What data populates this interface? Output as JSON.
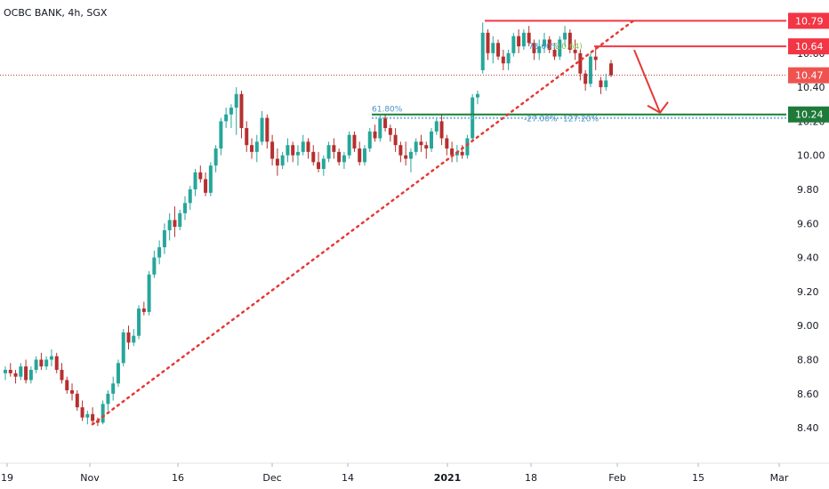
{
  "chart_data": {
    "type": "candlestick",
    "title": "OCBC BANK, 4h, SGX",
    "x_ticks": [
      "19",
      "Nov",
      "16",
      "Dec",
      "14",
      "2021",
      "18",
      "Feb",
      "15",
      "Mar"
    ],
    "y_ticks": [
      "8.40",
      "8.60",
      "8.80",
      "9.00",
      "9.20",
      "9.40",
      "9.60",
      "9.80",
      "10.00",
      "10.20",
      "10.40",
      "10.60"
    ],
    "ylim": [
      8.27,
      10.86
    ],
    "grid": false,
    "price_tags": [
      {
        "label": "10.79",
        "value": 10.79,
        "color": "#f23645"
      },
      {
        "label": "10.64",
        "value": 10.64,
        "color": "#f23645"
      },
      {
        "label": "10.47",
        "value": 10.47,
        "color": "#ef5350"
      },
      {
        "label": "10.24",
        "value": 10.24,
        "color": "#1f7a3a"
      }
    ],
    "last_price": 10.47,
    "annotations": [
      {
        "text": "61.80%",
        "color": "#4a90c8"
      },
      {
        "text": "-27.00%",
        "color": "#4a90c8"
      },
      {
        "text": "78.60%",
        "color": "#4a90c8"
      },
      {
        "text": "(10.64)",
        "color": "#8bc34a"
      },
      {
        "text": "127.20%",
        "color": "#4a90c8"
      }
    ],
    "levels": [
      {
        "value": 10.79,
        "color": "#f23645",
        "style": "solid"
      },
      {
        "value": 10.64,
        "color": "#f23645",
        "style": "solid"
      },
      {
        "value": 10.24,
        "color": "#1f7a3a",
        "style": "solid"
      }
    ],
    "trendline": {
      "from": [
        8.42,
        "Nov"
      ],
      "to": [
        10.79,
        "Jan 26"
      ],
      "style": "dotted",
      "color": "#e53935"
    },
    "projection_arrow": {
      "from": 10.64,
      "to": 10.24,
      "color": "#e53935"
    },
    "colors": {
      "up": "#26a69a",
      "down": "#b5302f",
      "accent": "#e53935",
      "support": "#1f7a3a"
    },
    "candles_ohlc": [
      [
        8.72,
        8.76,
        8.68,
        8.74
      ],
      [
        8.74,
        8.78,
        8.7,
        8.72
      ],
      [
        8.72,
        8.74,
        8.66,
        8.7
      ],
      [
        8.7,
        8.78,
        8.68,
        8.76
      ],
      [
        8.76,
        8.8,
        8.66,
        8.68
      ],
      [
        8.68,
        8.76,
        8.66,
        8.74
      ],
      [
        8.74,
        8.82,
        8.72,
        8.8
      ],
      [
        8.8,
        8.84,
        8.74,
        8.76
      ],
      [
        8.76,
        8.82,
        8.74,
        8.8
      ],
      [
        8.8,
        8.86,
        8.76,
        8.82
      ],
      [
        8.82,
        8.84,
        8.72,
        8.74
      ],
      [
        8.74,
        8.78,
        8.66,
        8.68
      ],
      [
        8.68,
        8.7,
        8.6,
        8.62
      ],
      [
        8.62,
        8.66,
        8.56,
        8.6
      ],
      [
        8.6,
        8.62,
        8.5,
        8.52
      ],
      [
        8.52,
        8.56,
        8.44,
        8.46
      ],
      [
        8.46,
        8.5,
        8.42,
        8.48
      ],
      [
        8.48,
        8.52,
        8.42,
        8.44
      ],
      [
        8.44,
        8.46,
        8.41,
        8.43
      ],
      [
        8.43,
        8.56,
        8.42,
        8.54
      ],
      [
        8.54,
        8.62,
        8.5,
        8.6
      ],
      [
        8.6,
        8.7,
        8.56,
        8.66
      ],
      [
        8.66,
        8.8,
        8.64,
        8.78
      ],
      [
        8.78,
        8.98,
        8.76,
        8.96
      ],
      [
        8.96,
        9.0,
        8.86,
        8.9
      ],
      [
        8.9,
        8.98,
        8.88,
        8.94
      ],
      [
        8.94,
        9.12,
        8.92,
        9.1
      ],
      [
        9.1,
        9.14,
        9.06,
        9.08
      ],
      [
        9.08,
        9.32,
        9.06,
        9.3
      ],
      [
        9.3,
        9.44,
        9.28,
        9.4
      ],
      [
        9.4,
        9.5,
        9.36,
        9.46
      ],
      [
        9.46,
        9.6,
        9.42,
        9.56
      ],
      [
        9.56,
        9.66,
        9.5,
        9.62
      ],
      [
        9.62,
        9.7,
        9.52,
        9.58
      ],
      [
        9.58,
        9.68,
        9.56,
        9.66
      ],
      [
        9.66,
        9.76,
        9.62,
        9.72
      ],
      [
        9.72,
        9.82,
        9.68,
        9.8
      ],
      [
        9.8,
        9.92,
        9.76,
        9.9
      ],
      [
        9.9,
        9.94,
        9.84,
        9.86
      ],
      [
        9.86,
        9.9,
        9.76,
        9.78
      ],
      [
        9.78,
        9.96,
        9.76,
        9.94
      ],
      [
        9.94,
        10.06,
        9.9,
        10.04
      ],
      [
        10.04,
        10.22,
        10.0,
        10.2
      ],
      [
        10.2,
        10.28,
        10.16,
        10.24
      ],
      [
        10.24,
        10.3,
        10.16,
        10.28
      ],
      [
        10.28,
        10.4,
        10.12,
        10.36
      ],
      [
        10.36,
        10.38,
        10.1,
        10.16
      ],
      [
        10.16,
        10.2,
        10.02,
        10.06
      ],
      [
        10.06,
        10.1,
        9.98,
        10.02
      ],
      [
        10.02,
        10.12,
        9.96,
        10.08
      ],
      [
        10.08,
        10.26,
        10.06,
        10.22
      ],
      [
        10.22,
        10.24,
        10.04,
        10.08
      ],
      [
        10.08,
        10.12,
        9.94,
        9.98
      ],
      [
        9.98,
        10.04,
        9.88,
        9.94
      ],
      [
        9.94,
        10.02,
        9.92,
        10.0
      ],
      [
        10.0,
        10.1,
        9.96,
        10.06
      ],
      [
        10.06,
        10.08,
        9.96,
        10.0
      ],
      [
        10.0,
        10.06,
        9.94,
        10.02
      ],
      [
        10.02,
        10.12,
        10.0,
        10.08
      ],
      [
        10.08,
        10.1,
        9.98,
        10.02
      ],
      [
        10.02,
        10.06,
        9.94,
        9.96
      ],
      [
        9.96,
        10.02,
        9.9,
        9.92
      ],
      [
        9.92,
        10.0,
        9.88,
        9.98
      ],
      [
        9.98,
        10.08,
        9.96,
        10.06
      ],
      [
        10.06,
        10.1,
        9.98,
        10.02
      ],
      [
        10.02,
        10.04,
        9.94,
        9.96
      ],
      [
        9.96,
        10.02,
        9.92,
        10.0
      ],
      [
        10.0,
        10.14,
        9.98,
        10.12
      ],
      [
        10.12,
        10.14,
        10.02,
        10.04
      ],
      [
        10.04,
        10.08,
        9.94,
        9.96
      ],
      [
        9.96,
        10.06,
        9.94,
        10.04
      ],
      [
        10.04,
        10.16,
        10.02,
        10.14
      ],
      [
        10.14,
        10.18,
        10.08,
        10.1
      ],
      [
        10.1,
        10.24,
        10.08,
        10.22
      ],
      [
        10.22,
        10.24,
        10.14,
        10.16
      ],
      [
        10.16,
        10.18,
        10.08,
        10.12
      ],
      [
        10.12,
        10.16,
        10.02,
        10.06
      ],
      [
        10.06,
        10.08,
        9.96,
        10.0
      ],
      [
        10.0,
        10.08,
        9.94,
        9.98
      ],
      [
        9.98,
        10.04,
        9.9,
        10.02
      ],
      [
        10.02,
        10.1,
        10.0,
        10.08
      ],
      [
        10.08,
        10.12,
        10.02,
        10.06
      ],
      [
        10.06,
        10.08,
        9.98,
        10.04
      ],
      [
        10.04,
        10.16,
        10.02,
        10.14
      ],
      [
        10.14,
        10.22,
        10.12,
        10.2
      ],
      [
        10.2,
        10.24,
        10.06,
        10.1
      ],
      [
        10.1,
        10.12,
        10.0,
        10.04
      ],
      [
        10.04,
        10.08,
        9.96,
        10.0
      ],
      [
        10.0,
        10.06,
        9.96,
        10.02
      ],
      [
        10.02,
        10.06,
        9.98,
        10.0
      ],
      [
        10.0,
        10.12,
        9.98,
        10.1
      ],
      [
        10.1,
        10.36,
        10.08,
        10.34
      ],
      [
        10.34,
        10.38,
        10.3,
        10.36
      ],
      [
        10.5,
        10.78,
        10.48,
        10.72
      ],
      [
        10.72,
        10.74,
        10.56,
        10.6
      ],
      [
        10.6,
        10.7,
        10.54,
        10.66
      ],
      [
        10.66,
        10.68,
        10.56,
        10.58
      ],
      [
        10.58,
        10.62,
        10.5,
        10.54
      ],
      [
        10.54,
        10.62,
        10.5,
        10.6
      ],
      [
        10.6,
        10.72,
        10.58,
        10.7
      ],
      [
        10.7,
        10.74,
        10.6,
        10.64
      ],
      [
        10.64,
        10.74,
        10.62,
        10.72
      ],
      [
        10.72,
        10.76,
        10.64,
        10.66
      ],
      [
        10.66,
        10.68,
        10.56,
        10.6
      ],
      [
        10.6,
        10.68,
        10.56,
        10.64
      ],
      [
        10.64,
        10.72,
        10.6,
        10.68
      ],
      [
        10.68,
        10.7,
        10.6,
        10.62
      ],
      [
        10.62,
        10.66,
        10.56,
        10.58
      ],
      [
        10.58,
        10.7,
        10.56,
        10.68
      ],
      [
        10.68,
        10.76,
        10.64,
        10.72
      ],
      [
        10.72,
        10.74,
        10.6,
        10.62
      ],
      [
        10.62,
        10.68,
        10.56,
        10.6
      ],
      [
        10.6,
        10.62,
        10.44,
        10.48
      ],
      [
        10.48,
        10.5,
        10.38,
        10.42
      ],
      [
        10.42,
        10.6,
        10.4,
        10.58
      ],
      [
        10.58,
        10.64,
        10.5,
        10.56
      ],
      [
        10.44,
        10.46,
        10.36,
        10.4
      ],
      [
        10.4,
        10.48,
        10.38,
        10.44
      ],
      [
        10.54,
        10.56,
        10.46,
        10.47
      ]
    ]
  }
}
